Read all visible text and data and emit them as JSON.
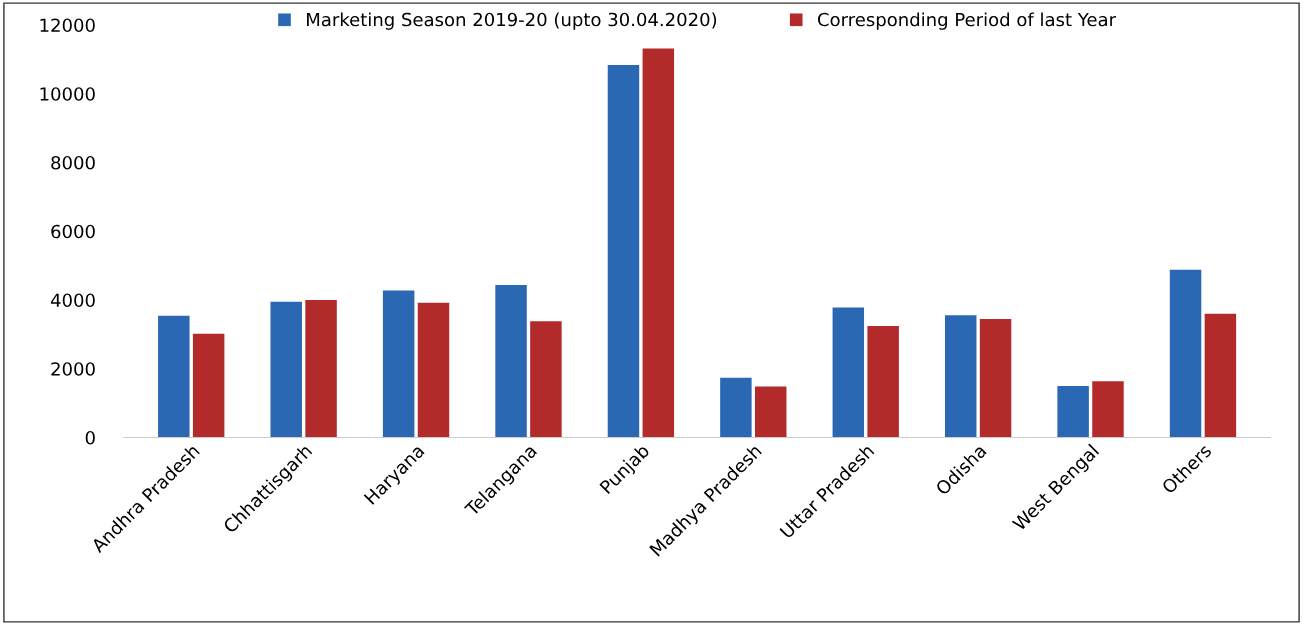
{
  "chart_data": {
    "type": "bar",
    "categories": [
      "Andhra Pradesh",
      "Chhattisgarh",
      "Haryana",
      "Telangana",
      "Punjab",
      "Madhya Pradesh",
      "Uttar Pradesh",
      "Odisha",
      "West Bengal",
      "Others"
    ],
    "series": [
      {
        "name": "Marketing Season 2019-20 (upto 30.04.2020)",
        "color": "#2a68b4",
        "values": [
          3540,
          3950,
          4280,
          4440,
          10840,
          1740,
          3780,
          3560,
          1500,
          4880
        ]
      },
      {
        "name": "Corresponding Period of last Year",
        "color": "#b22a2a",
        "values": [
          3020,
          4000,
          3920,
          3380,
          11320,
          1480,
          3240,
          3450,
          1640,
          3600
        ]
      }
    ],
    "ylim": [
      0,
      12000
    ],
    "yticks": [
      0,
      2000,
      4000,
      6000,
      8000,
      10000,
      12000
    ],
    "grid": false,
    "legend": "top"
  }
}
